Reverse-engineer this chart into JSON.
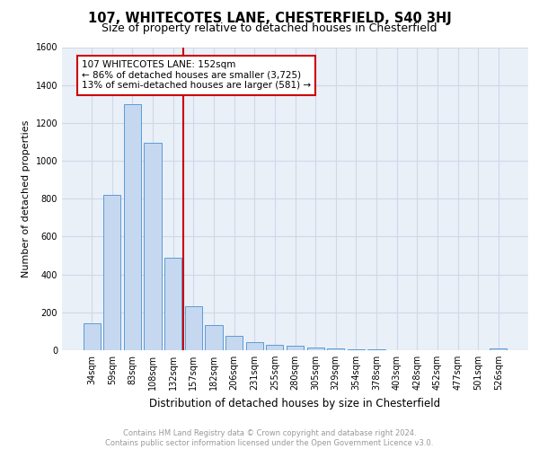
{
  "title1": "107, WHITECOTES LANE, CHESTERFIELD, S40 3HJ",
  "title2": "Size of property relative to detached houses in Chesterfield",
  "xlabel": "Distribution of detached houses by size in Chesterfield",
  "ylabel": "Number of detached properties",
  "categories": [
    "34sqm",
    "59sqm",
    "83sqm",
    "108sqm",
    "132sqm",
    "157sqm",
    "182sqm",
    "206sqm",
    "231sqm",
    "255sqm",
    "280sqm",
    "305sqm",
    "329sqm",
    "354sqm",
    "378sqm",
    "403sqm",
    "428sqm",
    "452sqm",
    "477sqm",
    "501sqm",
    "526sqm"
  ],
  "values": [
    140,
    820,
    1300,
    1095,
    490,
    230,
    135,
    75,
    45,
    30,
    25,
    15,
    8,
    5,
    3,
    2,
    1,
    1,
    1,
    1,
    10
  ],
  "bar_color": "#c5d8f0",
  "bar_edge_color": "#5b9bd5",
  "vline_x": 4.5,
  "vline_color": "#cc0000",
  "annotation_line1": "107 WHITECOTES LANE: 152sqm",
  "annotation_line2": "← 86% of detached houses are smaller (3,725)",
  "annotation_line3": "13% of semi-detached houses are larger (581) →",
  "annotation_box_color": "#cc0000",
  "ylim": [
    0,
    1600
  ],
  "yticks": [
    0,
    200,
    400,
    600,
    800,
    1000,
    1200,
    1400,
    1600
  ],
  "grid_color": "#d0d8e8",
  "bg_color": "#eaf0f8",
  "footer1": "Contains HM Land Registry data © Crown copyright and database right 2024.",
  "footer2": "Contains public sector information licensed under the Open Government Licence v3.0.",
  "title1_fontsize": 10.5,
  "title2_fontsize": 9,
  "xlabel_fontsize": 8.5,
  "ylabel_fontsize": 8,
  "tick_fontsize": 7,
  "annot_fontsize": 7.5,
  "footer_fontsize": 6
}
